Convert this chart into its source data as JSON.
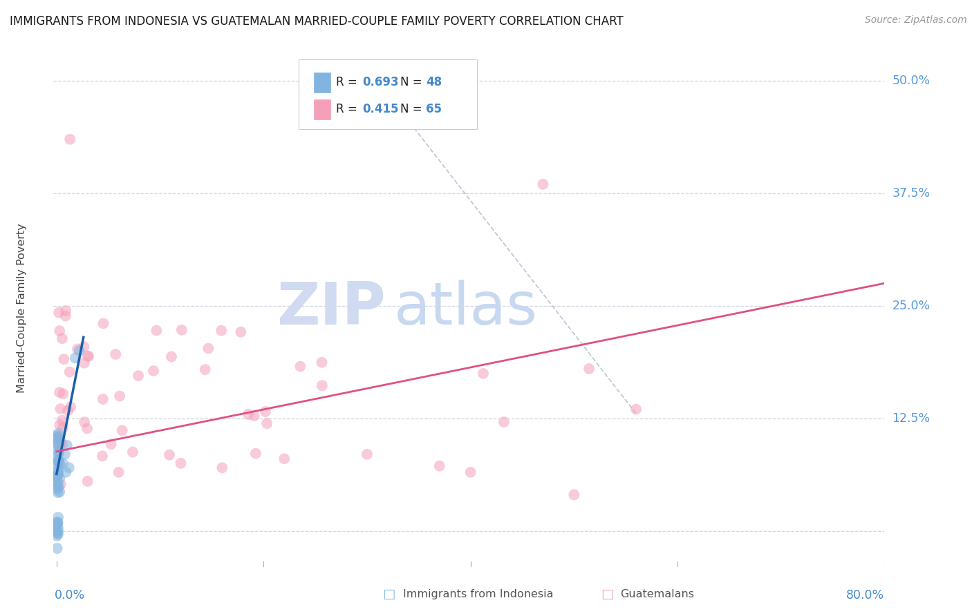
{
  "title": "IMMIGRANTS FROM INDONESIA VS GUATEMALAN MARRIED-COUPLE FAMILY POVERTY CORRELATION CHART",
  "source": "Source: ZipAtlas.com",
  "ylabel": "Married-Couple Family Poverty",
  "ytick_vals": [
    0.0,
    0.125,
    0.25,
    0.375,
    0.5
  ],
  "ytick_labels": [
    "",
    "12.5%",
    "25.0%",
    "37.5%",
    "50.0%"
  ],
  "xlim": [
    -0.003,
    0.8
  ],
  "ylim": [
    -0.04,
    0.535
  ],
  "legend_r1": "R = 0.693",
  "legend_n1": "N = 48",
  "legend_r2": "R = 0.415",
  "legend_n2": "N = 65",
  "blue_color": "#82b4e0",
  "blue_line_color": "#1a5fa8",
  "pink_color": "#f5a0b8",
  "pink_line_color": "#e05080",
  "dashed_line_color": "#b8bece",
  "watermark_zip_color": "#d0daf0",
  "watermark_atlas_color": "#c8d8f0",
  "background_color": "#ffffff",
  "grid_color": "#d0d4e0",
  "title_color": "#1a1a1a",
  "axis_label_color": "#4488cc",
  "right_label_color": "#5599dd",
  "scatter_size": 130,
  "scatter_alpha": 0.55,
  "blue_trend_x": [
    0.0,
    0.026
  ],
  "blue_trend_y": [
    0.063,
    0.215
  ],
  "pink_trend_x": [
    0.0,
    0.8
  ],
  "pink_trend_y": [
    0.088,
    0.275
  ],
  "diag_line_x": [
    0.31,
    0.56
  ],
  "diag_line_y": [
    0.5,
    0.13
  ],
  "x_tick_positions": [
    0.0,
    0.2,
    0.4,
    0.6,
    0.8
  ],
  "bottom_legend_labels": [
    "Immigrants from Indonesia",
    "Guatemalans"
  ]
}
